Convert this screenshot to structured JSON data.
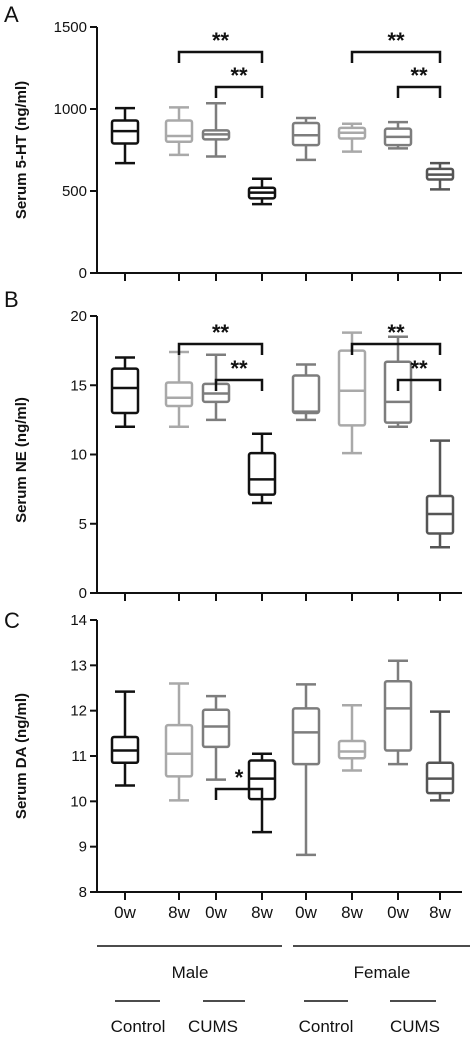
{
  "colors": {
    "male_control_0w": "#111111",
    "male_control_8w": "#a9a9a9",
    "male_cums_0w": "#7d7d7d",
    "male_cums_8w": "#111111",
    "female_control_0w": "#7d7d7d",
    "female_control_8w": "#a9a9a9",
    "female_cums_0w": "#7d7d7d",
    "female_cums_8w": "#555555",
    "axis": "#111111"
  },
  "x_labels": {
    "time": [
      "0w",
      "8w",
      "0w",
      "8w",
      "0w",
      "8w",
      "0w",
      "8w"
    ],
    "sex": [
      "Male",
      "Female"
    ],
    "group": [
      "Control",
      "CUMS",
      "Control",
      "CUMS"
    ]
  },
  "chart_data": [
    {
      "type": "box",
      "panel": "A",
      "ylabel": "Serum 5-HT (ng/ml)",
      "ylim": [
        0,
        1500
      ],
      "yticks": [
        0,
        500,
        1000,
        1500
      ],
      "boxes": [
        {
          "min": 670,
          "q1": 790,
          "median": 865,
          "q3": 930,
          "max": 1005
        },
        {
          "min": 720,
          "q1": 800,
          "median": 835,
          "q3": 930,
          "max": 1010
        },
        {
          "min": 710,
          "q1": 815,
          "median": 845,
          "q3": 870,
          "max": 1035
        },
        {
          "min": 420,
          "q1": 455,
          "median": 490,
          "q3": 520,
          "max": 575
        },
        {
          "min": 690,
          "q1": 780,
          "median": 840,
          "q3": 915,
          "max": 945
        },
        {
          "min": 740,
          "q1": 820,
          "median": 855,
          "q3": 885,
          "max": 910
        },
        {
          "min": 760,
          "q1": 780,
          "median": 830,
          "q3": 880,
          "max": 920
        },
        {
          "min": 510,
          "q1": 570,
          "median": 600,
          "q3": 635,
          "max": 670
        }
      ],
      "significance": [
        {
          "from": 1,
          "to": 3,
          "label": "**"
        },
        {
          "from": 2,
          "to": 3,
          "label": "**"
        },
        {
          "from": 5,
          "to": 7,
          "label": "**"
        },
        {
          "from": 6,
          "to": 7,
          "label": "**"
        }
      ]
    },
    {
      "type": "box",
      "panel": "B",
      "ylabel": "Serum NE (ng/ml)",
      "ylim": [
        0,
        20
      ],
      "yticks": [
        0,
        5,
        10,
        15,
        20
      ],
      "boxes": [
        {
          "min": 12,
          "q1": 13,
          "median": 14.8,
          "q3": 16.2,
          "max": 17
        },
        {
          "min": 12,
          "q1": 13.5,
          "median": 14.1,
          "q3": 15.2,
          "max": 17.4
        },
        {
          "min": 12.5,
          "q1": 13.8,
          "median": 14.4,
          "q3": 15.1,
          "max": 17.2
        },
        {
          "min": 6.5,
          "q1": 7.1,
          "median": 8.2,
          "q3": 10.1,
          "max": 11.5
        },
        {
          "min": 12.5,
          "q1": 13,
          "median": 13.1,
          "q3": 15.7,
          "max": 16.5
        },
        {
          "min": 10.1,
          "q1": 12.1,
          "median": 14.6,
          "q3": 17.5,
          "max": 18.8
        },
        {
          "min": 12,
          "q1": 12.3,
          "median": 13.8,
          "q3": 16.7,
          "max": 18.5
        },
        {
          "min": 3.3,
          "q1": 4.3,
          "median": 5.7,
          "q3": 7,
          "max": 11
        }
      ],
      "significance": [
        {
          "from": 1,
          "to": 3,
          "label": "**"
        },
        {
          "from": 2,
          "to": 3,
          "label": "**"
        },
        {
          "from": 5,
          "to": 7,
          "label": "**"
        },
        {
          "from": 6,
          "to": 7,
          "label": "**"
        }
      ]
    },
    {
      "type": "box",
      "panel": "C",
      "ylabel": "Serum DA (ng/ml)",
      "ylim": [
        8,
        14
      ],
      "yticks": [
        8,
        9,
        10,
        11,
        12,
        13,
        14
      ],
      "boxes": [
        {
          "min": 10.35,
          "q1": 10.85,
          "median": 11.12,
          "q3": 11.42,
          "max": 12.42
        },
        {
          "min": 10.02,
          "q1": 10.55,
          "median": 11.05,
          "q3": 11.68,
          "max": 12.6
        },
        {
          "min": 10.48,
          "q1": 11.2,
          "median": 11.65,
          "q3": 12.02,
          "max": 12.32
        },
        {
          "min": 9.32,
          "q1": 10.05,
          "median": 10.5,
          "q3": 10.9,
          "max": 11.05
        },
        {
          "min": 8.82,
          "q1": 10.82,
          "median": 11.52,
          "q3": 12.05,
          "max": 12.58
        },
        {
          "min": 10.68,
          "q1": 10.95,
          "median": 11.1,
          "q3": 11.33,
          "max": 12.12
        },
        {
          "min": 10.82,
          "q1": 11.12,
          "median": 12.05,
          "q3": 12.65,
          "max": 13.1
        },
        {
          "min": 10.02,
          "q1": 10.18,
          "median": 10.5,
          "q3": 10.85,
          "max": 11.98
        }
      ],
      "significance": [
        {
          "from": 2,
          "to": 3,
          "label": "*"
        }
      ]
    }
  ]
}
